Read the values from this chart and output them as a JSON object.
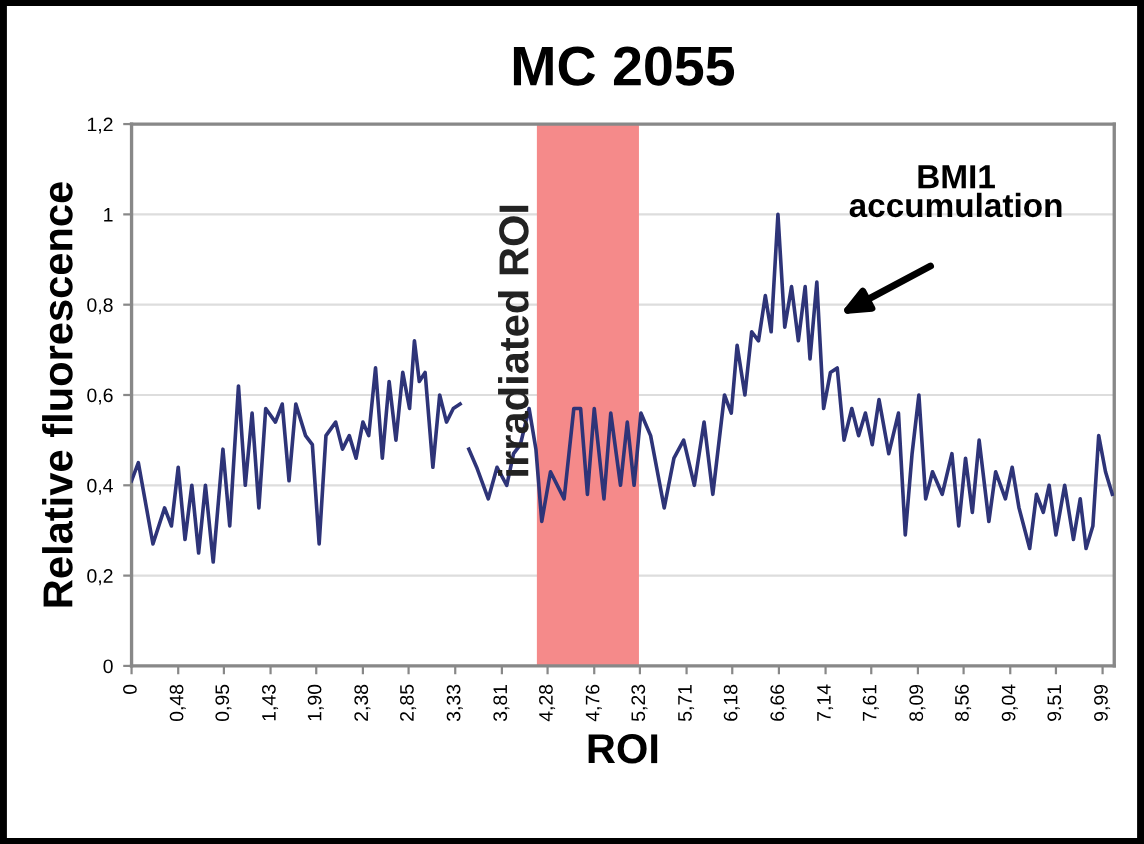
{
  "chart_data": {
    "type": "line",
    "title": "MC 2055",
    "xlabel": "ROI",
    "ylabel": "Relative fluorescence",
    "x": [
      0,
      0.07,
      0.22,
      0.34,
      0.41,
      0.48,
      0.55,
      0.62,
      0.69,
      0.76,
      0.84,
      0.94,
      1.01,
      1.1,
      1.17,
      1.24,
      1.31,
      1.38,
      1.48,
      1.55,
      1.62,
      1.69,
      1.79,
      1.86,
      1.93,
      2.0,
      2.1,
      2.17,
      2.24,
      2.31,
      2.38,
      2.44,
      2.51,
      2.58,
      2.65,
      2.72,
      2.79,
      2.86,
      2.91,
      2.96,
      3.02,
      3.1,
      3.17,
      3.24,
      3.31,
      3.38,
      3.42,
      3.47,
      3.55,
      3.67,
      3.76,
      3.86,
      3.93,
      4.0,
      4.09,
      4.16,
      4.22,
      4.31,
      4.45,
      4.55,
      4.62,
      4.69,
      4.76,
      4.86,
      4.93,
      5.03,
      5.1,
      5.17,
      5.24,
      5.34,
      5.48,
      5.58,
      5.68,
      5.79,
      5.89,
      5.98,
      6.1,
      6.17,
      6.23,
      6.31,
      6.38,
      6.45,
      6.52,
      6.58,
      6.65,
      6.72,
      6.79,
      6.86,
      6.93,
      6.98,
      7.05,
      7.12,
      7.19,
      7.26,
      7.33,
      7.41,
      7.48,
      7.55,
      7.62,
      7.69,
      7.79,
      7.89,
      7.96,
      8.03,
      8.1,
      8.17,
      8.24,
      8.34,
      8.44,
      8.51,
      8.58,
      8.65,
      8.72,
      8.82,
      8.89,
      8.99,
      9.06,
      9.13,
      9.24,
      9.31,
      9.38,
      9.44,
      9.51,
      9.6,
      9.69,
      9.76,
      9.82,
      9.89,
      9.95,
      10.02,
      10.09
    ],
    "series": [
      {
        "color": "#2e3478",
        "values": [
          0.41,
          0.45,
          0.27,
          0.35,
          0.31,
          0.44,
          0.28,
          0.4,
          0.25,
          0.4,
          0.23,
          0.48,
          0.31,
          0.62,
          0.4,
          0.56,
          0.35,
          0.57,
          0.54,
          0.58,
          0.41,
          0.58,
          0.51,
          0.49,
          0.27,
          0.51,
          0.54,
          0.48,
          0.51,
          0.46,
          0.54,
          0.51,
          0.66,
          0.46,
          0.63,
          0.5,
          0.65,
          0.57,
          0.72,
          0.63,
          0.65,
          0.44,
          0.6,
          0.54,
          0.57,
          0.58,
          null,
          0.48,
          0.44,
          0.37,
          0.44,
          0.4,
          0.47,
          0.49,
          0.57,
          0.48,
          0.32,
          0.43,
          0.37,
          0.57,
          0.57,
          0.38,
          0.57,
          0.37,
          0.56,
          0.4,
          0.54,
          0.4,
          0.56,
          0.51,
          0.35,
          0.46,
          0.5,
          0.4,
          0.54,
          0.38,
          0.6,
          0.56,
          0.71,
          0.6,
          0.74,
          0.72,
          0.82,
          0.74,
          1.0,
          0.75,
          0.84,
          0.72,
          0.84,
          0.68,
          0.85,
          0.57,
          0.65,
          0.66,
          0.5,
          0.57,
          0.51,
          0.56,
          0.49,
          0.59,
          0.47,
          0.56,
          0.29,
          0.47,
          0.6,
          0.37,
          0.43,
          0.38,
          0.47,
          0.31,
          0.46,
          0.34,
          0.5,
          0.32,
          0.43,
          0.37,
          0.44,
          0.35,
          0.26,
          0.38,
          0.34,
          0.4,
          0.29,
          0.4,
          0.28,
          0.37,
          0.26,
          0.31,
          0.51,
          0.43,
          0.38
        ]
      }
    ],
    "xlim": [
      0,
      10.11
    ],
    "xticks": [
      0,
      {
        "value": 0.48,
        "label": "0,48"
      },
      {
        "value": 0.95,
        "label": "0,95"
      },
      {
        "value": 1.43,
        "label": "1,43"
      },
      {
        "value": 1.9,
        "label": "1,90"
      },
      {
        "value": 2.38,
        "label": "2,38"
      },
      {
        "value": 2.85,
        "label": "2,85"
      },
      {
        "value": 3.33,
        "label": "3,33"
      },
      {
        "value": 3.81,
        "label": "3,81"
      },
      {
        "value": 4.28,
        "label": "4,28"
      },
      {
        "value": 4.76,
        "label": "4,76"
      },
      {
        "value": 5.23,
        "label": "5,23"
      },
      {
        "value": 5.71,
        "label": "5,71"
      },
      {
        "value": 6.18,
        "label": "6,18"
      },
      {
        "value": 6.66,
        "label": "6,66"
      },
      {
        "value": 7.14,
        "label": "7,14"
      },
      {
        "value": 7.61,
        "label": "7,61"
      },
      {
        "value": 8.09,
        "label": "8,09"
      },
      {
        "value": 8.56,
        "label": "8,56"
      },
      {
        "value": 9.04,
        "label": "9,04"
      },
      {
        "value": 9.51,
        "label": "9,51"
      },
      {
        "value": 9.99,
        "label": "9,99"
      }
    ],
    "ylim": [
      0,
      1.2
    ],
    "yticks": [
      0,
      {
        "value": 0.2,
        "label": "0,2"
      },
      {
        "value": 0.4,
        "label": "0,4"
      },
      {
        "value": 0.6,
        "label": "0,6"
      },
      {
        "value": 0.8,
        "label": "0,8"
      },
      1,
      {
        "value": 1.2,
        "label": "1,2"
      }
    ],
    "grid": "y",
    "marker": "none",
    "line_style": "solid",
    "legend": false,
    "bands": [
      {
        "axis": "x",
        "from": 4.17,
        "to": 5.22,
        "label": "irradiated ROI",
        "color": "#f58a8a"
      }
    ],
    "annotations": [
      "BMI1\naccumulation"
    ]
  }
}
